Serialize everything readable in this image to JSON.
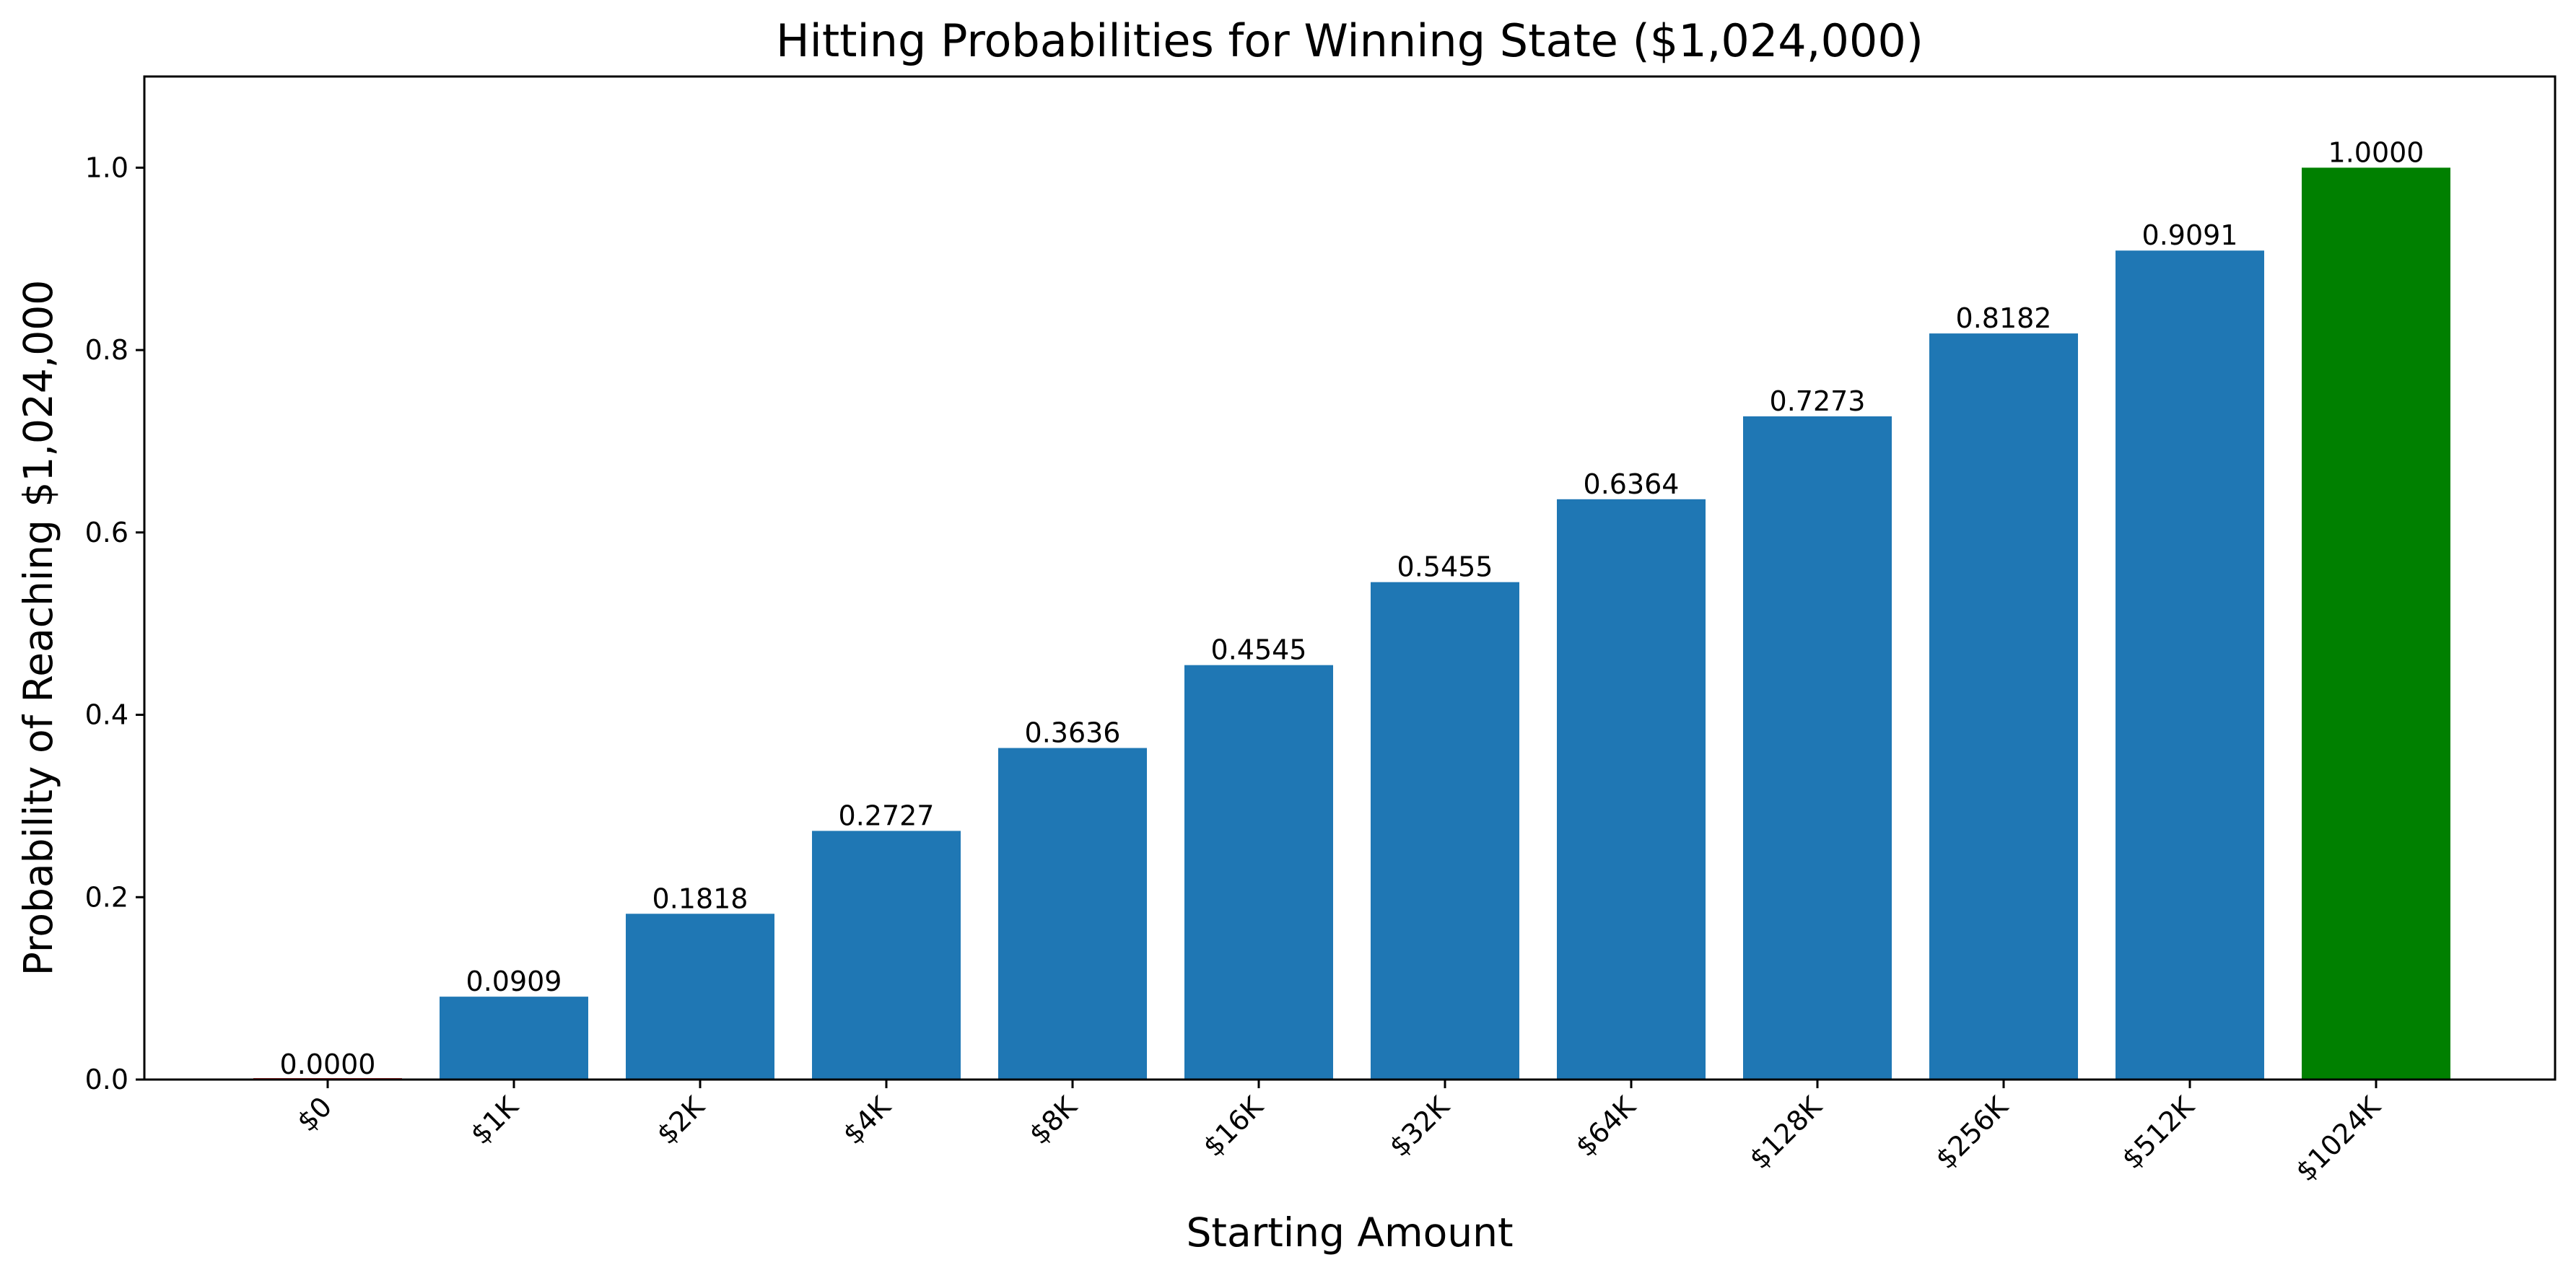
{
  "chart_data": {
    "type": "bar",
    "title": "Hitting Probabilities for Winning State ($1,024,000)",
    "xlabel": "Starting Amount",
    "ylabel": "Probability of Reaching $1,024,000",
    "categories": [
      "$0",
      "$1K",
      "$2K",
      "$4K",
      "$8K",
      "$16K",
      "$32K",
      "$64K",
      "$128K",
      "$256K",
      "$512K",
      "$1024K"
    ],
    "values": [
      0.0,
      0.0909,
      0.1818,
      0.2727,
      0.3636,
      0.4545,
      0.5455,
      0.6364,
      0.7273,
      0.8182,
      0.9091,
      1.0
    ],
    "data_labels": [
      "0.0000",
      "0.0909",
      "0.1818",
      "0.2727",
      "0.3636",
      "0.4545",
      "0.5455",
      "0.6364",
      "0.7273",
      "0.8182",
      "0.9091",
      "1.0000"
    ],
    "bar_colors": [
      "#d62728",
      "#1f77b4",
      "#1f77b4",
      "#1f77b4",
      "#1f77b4",
      "#1f77b4",
      "#1f77b4",
      "#1f77b4",
      "#1f77b4",
      "#1f77b4",
      "#1f77b4",
      "#008000"
    ],
    "ylim": [
      0,
      1.1
    ],
    "yticks": [
      0.0,
      0.2,
      0.4,
      0.6,
      0.8,
      1.0
    ],
    "ytick_labels": [
      "0.0",
      "0.2",
      "0.4",
      "0.6",
      "0.8",
      "1.0"
    ],
    "grid": false,
    "legend": "none",
    "xtick_rotation": "45 degrees"
  }
}
